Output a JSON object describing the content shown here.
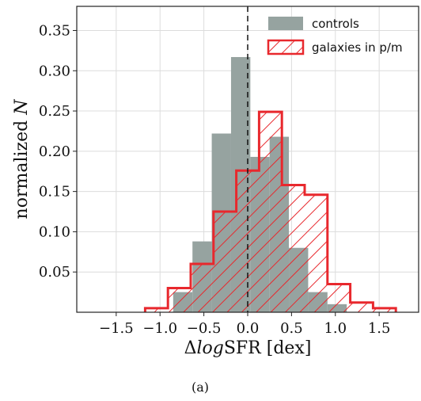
{
  "chart_data": {
    "type": "histogram",
    "xlabel_prefix": "Δ",
    "xlabel_italic": "log",
    "xlabel_suffix": "SFR [dex]",
    "ylabel_prefix": "normalized ",
    "ylabel_italic": "N",
    "caption": "(a)",
    "xlim": [
      -1.95,
      1.95
    ],
    "ylim": [
      0,
      0.38
    ],
    "xticks": [
      -1.5,
      -1.0,
      -0.5,
      0.0,
      0.5,
      1.0,
      1.5
    ],
    "xtick_labels": [
      "−1.5",
      "−1.0",
      "−0.5",
      "0.0",
      "0.5",
      "1.0",
      "1.5"
    ],
    "yticks": [
      0.05,
      0.1,
      0.15,
      0.2,
      0.25,
      0.3,
      0.35
    ],
    "ytick_labels": [
      "0.05",
      "0.10",
      "0.15",
      "0.20",
      "0.25",
      "0.30",
      "0.35"
    ],
    "grid": true,
    "vline_x": 0.0,
    "legend_position": "top-right",
    "series": [
      {
        "name": "controls",
        "style": "filled",
        "color": "#96a3a0",
        "bins": [
          {
            "x0": -0.85,
            "x1": -0.63,
            "y": 0.025
          },
          {
            "x0": -0.63,
            "x1": -0.41,
            "y": 0.088
          },
          {
            "x0": -0.41,
            "x1": -0.19,
            "y": 0.222
          },
          {
            "x0": -0.19,
            "x1": 0.03,
            "y": 0.317
          },
          {
            "x0": 0.03,
            "x1": 0.25,
            "y": 0.193
          },
          {
            "x0": 0.25,
            "x1": 0.47,
            "y": 0.218
          },
          {
            "x0": 0.47,
            "x1": 0.69,
            "y": 0.08
          },
          {
            "x0": 0.69,
            "x1": 0.91,
            "y": 0.025
          },
          {
            "x0": 0.91,
            "x1": 1.13,
            "y": 0.01
          }
        ]
      },
      {
        "name": "galaxies in p/m",
        "style": "hatched",
        "color": "#e8282d",
        "bins": [
          {
            "x0": -1.17,
            "x1": -0.91,
            "y": 0.005
          },
          {
            "x0": -0.91,
            "x1": -0.65,
            "y": 0.03
          },
          {
            "x0": -0.65,
            "x1": -0.39,
            "y": 0.06
          },
          {
            "x0": -0.39,
            "x1": -0.13,
            "y": 0.125
          },
          {
            "x0": -0.13,
            "x1": 0.13,
            "y": 0.176
          },
          {
            "x0": 0.13,
            "x1": 0.39,
            "y": 0.249
          },
          {
            "x0": 0.39,
            "x1": 0.65,
            "y": 0.158
          },
          {
            "x0": 0.65,
            "x1": 0.91,
            "y": 0.146
          },
          {
            "x0": 0.91,
            "x1": 1.17,
            "y": 0.035
          },
          {
            "x0": 1.17,
            "x1": 1.43,
            "y": 0.012
          },
          {
            "x0": 1.43,
            "x1": 1.69,
            "y": 0.005
          }
        ]
      }
    ]
  }
}
